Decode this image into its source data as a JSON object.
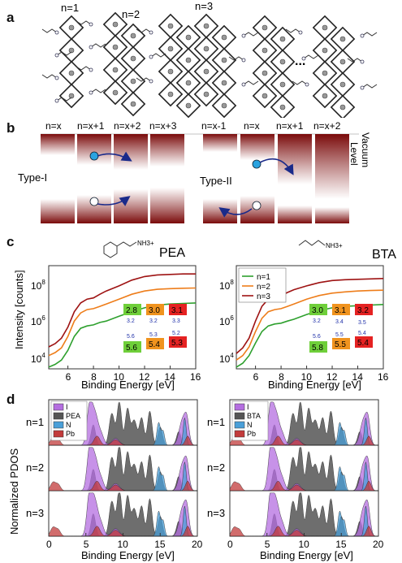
{
  "panels": {
    "a": "a",
    "b": "b",
    "c": "c",
    "d": "d"
  },
  "panel_a": {
    "n_labels": [
      "n=1",
      "n=2",
      "n=3"
    ],
    "ellipsis": "..."
  },
  "panel_b": {
    "left_labels": [
      "n=x",
      "n=x+1",
      "n=x+2",
      "n=x+3"
    ],
    "right_labels": [
      "n=x-1",
      "n=x",
      "n=x+1",
      "n=x+2"
    ],
    "type1": "Type-I",
    "type2": "Type-II",
    "vacuum": "Vacuum",
    "level": "Level"
  },
  "panel_c": {
    "ylabel": "Intensity [counts]",
    "xlabel": "Binding Energy [eV]",
    "left_title": "PEA",
    "right_title": "BTA",
    "left_mol_label": "NH3+",
    "right_mol_label": "NH3+",
    "legend": [
      "n=1",
      "n=2",
      "n=3"
    ],
    "series_colors": [
      "#2ea02e",
      "#ee7d1a",
      "#9e1313"
    ],
    "ytick_labels": [
      "10",
      "10",
      "10"
    ],
    "ytick_exps": [
      "4",
      "6",
      "8"
    ],
    "xtick_labels": [
      "6",
      "8",
      "10",
      "12",
      "14",
      "16"
    ],
    "left_boxes": {
      "top": [
        "2.8",
        "3.0",
        "3.1"
      ],
      "top_sub": [
        "3.2",
        "3.2",
        "3.3"
      ],
      "bot_sup": [
        "5.6",
        "5.3",
        "5.2"
      ],
      "bot": [
        "5.6",
        "5.4",
        "5.3"
      ]
    },
    "right_boxes": {
      "top": [
        "3.0",
        "3.1",
        "3.2"
      ],
      "top_sub": [
        "3.2",
        "3.4",
        "3.5"
      ],
      "bot_sup": [
        "5.6",
        "5.5",
        "5.4"
      ],
      "bot": [
        "5.8",
        "5.5",
        "5.4"
      ]
    }
  },
  "panel_d": {
    "ylabel": "Normalized PDOS",
    "xlabel": "Binding Energy [eV]",
    "rows": [
      "n=1",
      "n=2",
      "n=3"
    ],
    "left_legend": [
      "I",
      "PEA",
      "N",
      "Pb"
    ],
    "right_legend": [
      "I",
      "BTA",
      "N",
      "Pb"
    ],
    "legend_colors": [
      "#b46ee0",
      "#555555",
      "#4a9fd8",
      "#c23b3b"
    ],
    "xtick_labels": [
      "0",
      "5",
      "10",
      "15",
      "20"
    ]
  },
  "chart_data": [
    {
      "type": "line",
      "title": "PEA",
      "xlabel": "Binding Energy [eV]",
      "ylabel": "Intensity [counts]",
      "xlim": [
        4.5,
        16
      ],
      "ylim": [
        10000,
        500000000
      ],
      "yscale": "log",
      "x": [
        4.5,
        5,
        5.5,
        6,
        6.5,
        7,
        7.5,
        8,
        8.5,
        9,
        10,
        11,
        12,
        13,
        14,
        15,
        16
      ],
      "series": [
        {
          "name": "n=1",
          "values": [
            12000,
            16000,
            25000,
            70000,
            300000,
            700000,
            900000,
            1000000,
            1300000,
            1500000,
            2500000,
            4000000,
            6000000,
            8000000,
            9000000,
            9500000,
            10000000
          ]
        },
        {
          "name": "n=2",
          "values": [
            40000,
            55000,
            90000,
            300000,
            1500000,
            3500000,
            5000000,
            5500000,
            7000000,
            9000000,
            15000000,
            25000000,
            35000000,
            42000000,
            45000000,
            47000000,
            48000000
          ]
        },
        {
          "name": "n=3",
          "values": [
            100000,
            140000,
            250000,
            800000,
            4000000,
            10000000,
            15000000,
            17000000,
            25000000,
            35000000,
            60000000,
            110000000,
            160000000,
            190000000,
            200000000,
            210000000,
            210000000
          ]
        }
      ]
    },
    {
      "type": "line",
      "title": "BTA",
      "xlabel": "Binding Energy [eV]",
      "ylabel": "Intensity [counts]",
      "xlim": [
        4.5,
        16
      ],
      "ylim": [
        10000,
        500000000
      ],
      "yscale": "log",
      "x": [
        4.5,
        5,
        5.5,
        6,
        6.5,
        7,
        7.5,
        8,
        8.5,
        9,
        10,
        11,
        12,
        13,
        14,
        15,
        16
      ],
      "series": [
        {
          "name": "n=1",
          "values": [
            12000,
            18000,
            40000,
            150000,
            500000,
            900000,
            1100000,
            1200000,
            1500000,
            1800000,
            3000000,
            4500000,
            6000000,
            7000000,
            7500000,
            8000000,
            8500000
          ]
        },
        {
          "name": "n=2",
          "values": [
            25000,
            40000,
            100000,
            500000,
            2000000,
            4000000,
            5000000,
            5500000,
            7000000,
            9000000,
            15000000,
            22000000,
            28000000,
            32000000,
            35000000,
            37000000,
            38000000
          ]
        },
        {
          "name": "n=3",
          "values": [
            50000,
            90000,
            250000,
            1500000,
            7000000,
            15000000,
            20000000,
            22000000,
            30000000,
            40000000,
            60000000,
            85000000,
            105000000,
            115000000,
            120000000,
            125000000,
            130000000
          ]
        }
      ]
    }
  ]
}
